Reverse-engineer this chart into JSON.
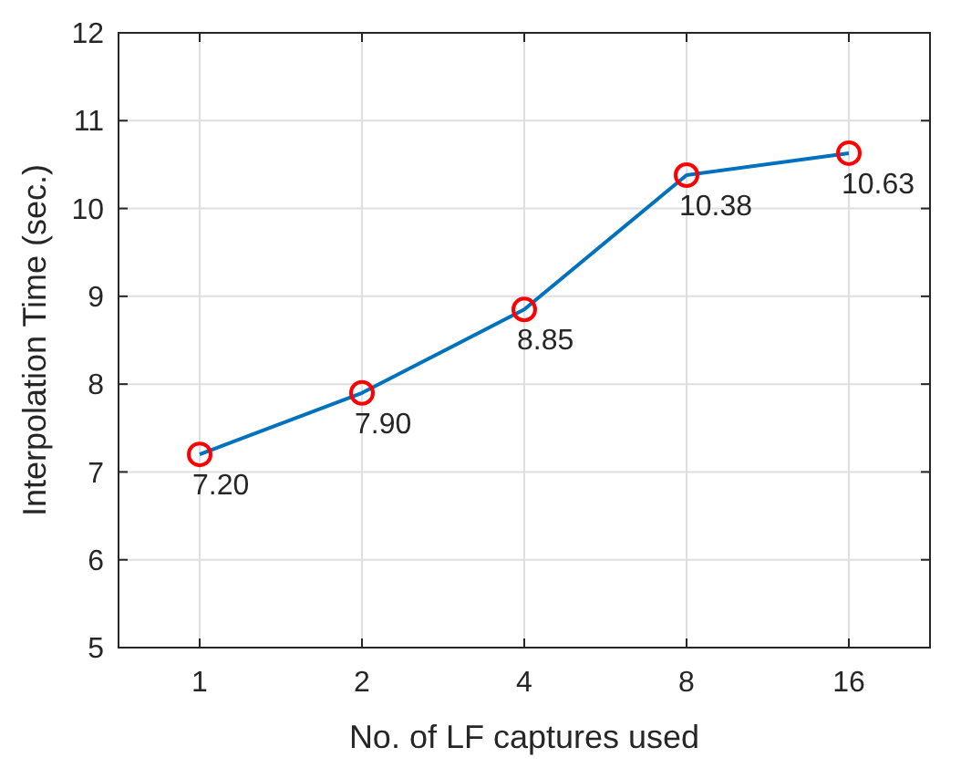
{
  "chart_data": {
    "type": "line",
    "xlabel": "No. of LF captures used",
    "ylabel": "Interpolation Time (sec.)",
    "categories": [
      "1",
      "2",
      "4",
      "8",
      "16"
    ],
    "series": [
      {
        "color": "#0072bd",
        "values": [
          7.2,
          7.9,
          8.85,
          10.38,
          10.63
        ],
        "value_labels": [
          "7.20",
          "7.90",
          "8.85",
          "10.38",
          "10.63"
        ]
      }
    ],
    "ylim": [
      5,
      12
    ],
    "yticks": [
      5,
      6,
      7,
      8,
      9,
      10,
      11,
      12
    ],
    "grid": true,
    "marker": "circle",
    "line_style": "solid"
  }
}
